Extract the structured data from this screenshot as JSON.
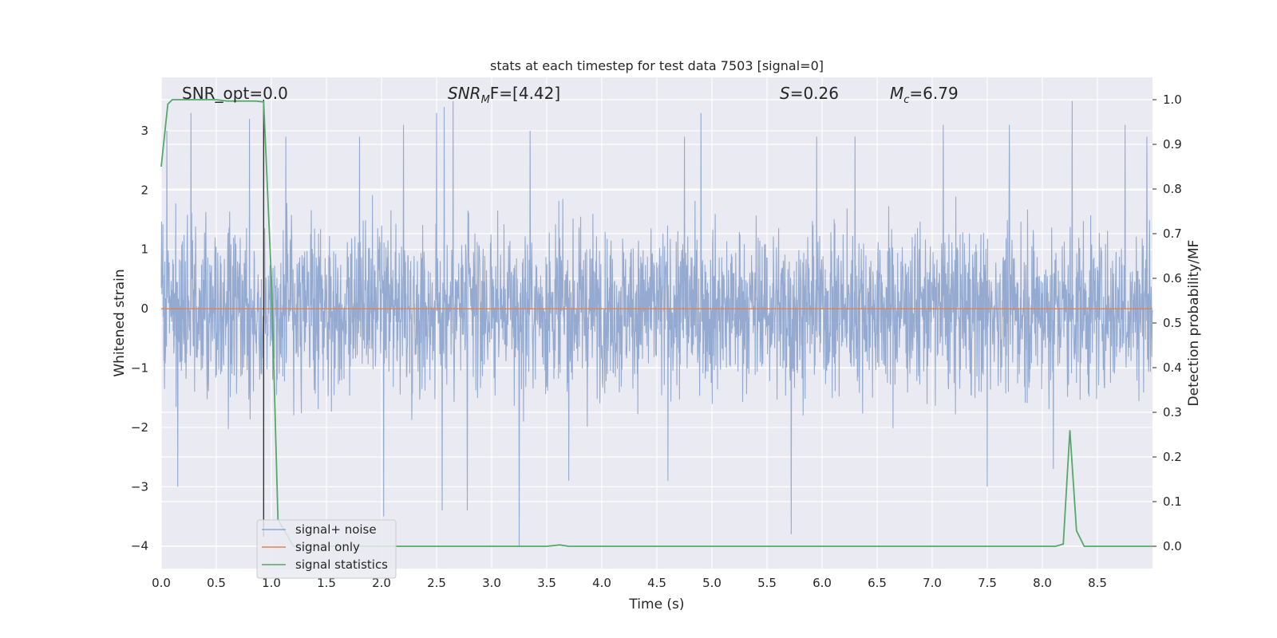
{
  "chart_data": {
    "type": "line",
    "title": "stats at each timestep for test data 7503 [signal=0]",
    "xlabel": "Time (s)",
    "ylabel": "Whitened strain",
    "y2label": "Detection probability/MF",
    "xlim": [
      0.0,
      9.0
    ],
    "ylim": [
      -4.38,
      3.9
    ],
    "y2lim": [
      -0.05,
      1.05
    ],
    "xticks": [
      "0.0",
      "0.5",
      "1.0",
      "1.5",
      "2.0",
      "2.5",
      "3.0",
      "3.5",
      "4.0",
      "4.5",
      "5.0",
      "5.5",
      "6.0",
      "6.5",
      "7.0",
      "7.5",
      "8.0",
      "8.5"
    ],
    "yticks": [
      "3",
      "2",
      "1",
      "0",
      "−1",
      "−2",
      "−3",
      "−4"
    ],
    "y2ticks": [
      "1.0",
      "0.9",
      "0.8",
      "0.7",
      "0.6",
      "0.5",
      "0.4",
      "0.3",
      "0.2",
      "0.1",
      "0.0"
    ],
    "grid": true,
    "legend_position": "lower-left",
    "annotations": {
      "snr_opt": "SNR_opt=0.0",
      "snr_mf_sym": "SNR",
      "snr_mf_sub": "M",
      "snr_mf_rest": "F=[4.42]",
      "s_sym": "S",
      "s_rest": "=0.26",
      "mc_sym": "M",
      "mc_sub": "c",
      "mc_rest": "=6.79"
    },
    "marker_line_x": 0.93,
    "series": [
      {
        "name": "signal+ noise",
        "color": "#8fa6cf",
        "axis": "left",
        "description_values": "whitened noise, amplitude roughly ±2.5 with peaks to ±3.8",
        "peaks": [
          [
            0.05,
            3.0
          ],
          [
            0.27,
            3.3
          ],
          [
            0.8,
            3.2
          ],
          [
            1.13,
            2.9
          ],
          [
            1.8,
            2.9
          ],
          [
            2.2,
            3.1
          ],
          [
            2.5,
            3.3
          ],
          [
            2.65,
            3.5
          ],
          [
            2.57,
            3.4
          ],
          [
            3.25,
            3.2
          ],
          [
            3.35,
            3.0
          ],
          [
            4.9,
            3.3
          ],
          [
            4.75,
            2.9
          ],
          [
            5.95,
            2.9
          ],
          [
            6.3,
            2.9
          ],
          [
            7.1,
            3.1
          ],
          [
            7.7,
            3.1
          ],
          [
            8.27,
            3.5
          ],
          [
            8.75,
            3.1
          ],
          [
            8.95,
            2.9
          ]
        ],
        "troughs": [
          [
            0.15,
            -3.0
          ],
          [
            2.02,
            -3.5
          ],
          [
            2.55,
            -3.4
          ],
          [
            2.78,
            -3.4
          ],
          [
            3.25,
            -4.0
          ],
          [
            5.72,
            -3.8
          ],
          [
            7.5,
            -3.0
          ],
          [
            8.1,
            -2.7
          ],
          [
            3.7,
            -2.9
          ],
          [
            4.6,
            -2.9
          ]
        ]
      },
      {
        "name": "signal only",
        "color": "#dd8452",
        "axis": "left",
        "x": [
          0.0,
          9.0
        ],
        "y": [
          0.0,
          0.0
        ]
      },
      {
        "name": "signal statistics",
        "color": "#55a868",
        "axis": "right",
        "x": [
          0.0,
          0.06,
          0.1,
          0.15,
          0.2,
          0.3,
          0.4,
          0.5,
          0.6,
          0.7,
          0.8,
          0.86,
          0.93,
          1.0,
          1.06,
          1.2,
          1.5,
          2.0,
          2.5,
          3.0,
          3.5,
          3.62,
          3.7,
          4.0,
          5.0,
          6.0,
          7.0,
          8.0,
          8.12,
          8.19,
          8.25,
          8.31,
          8.38,
          8.5,
          9.0
        ],
        "y": [
          0.85,
          0.99,
          1.0,
          1.0,
          1.0,
          1.0,
          1.0,
          1.0,
          0.997,
          0.997,
          0.997,
          0.997,
          0.995,
          0.6,
          0.06,
          0.0,
          0.0,
          0.0,
          0.0,
          0.0,
          0.0,
          0.003,
          0.0,
          0.0,
          0.0,
          0.0,
          0.0,
          0.0,
          0.0,
          0.005,
          0.26,
          0.035,
          0.0,
          0.0,
          0.0
        ]
      }
    ]
  }
}
